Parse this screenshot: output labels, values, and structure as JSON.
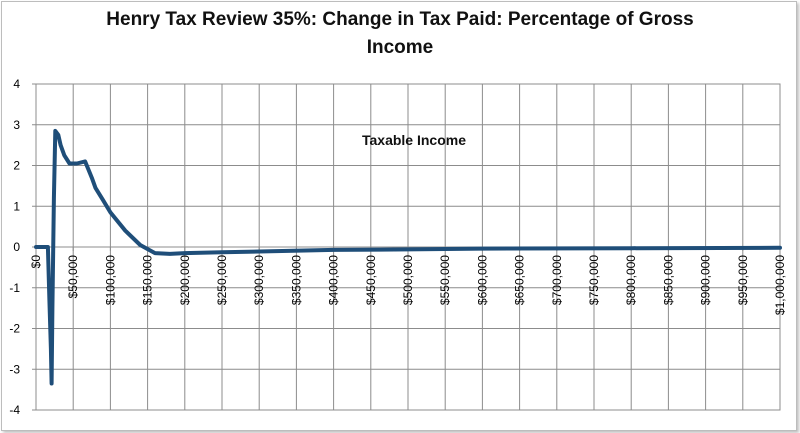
{
  "chart_data": {
    "type": "line",
    "title": "Henry Tax Review 35%: Change in Tax Paid: Percentage of Gross Income",
    "annotation": "Taxable Income",
    "xlabel": "",
    "ylabel": "",
    "xlim": [
      0,
      1000000
    ],
    "ylim": [
      -4,
      4
    ],
    "yticks": [
      -4,
      -3,
      -2,
      -1,
      0,
      1,
      2,
      3,
      4
    ],
    "xticks": [
      0,
      50000,
      100000,
      150000,
      200000,
      250000,
      300000,
      350000,
      400000,
      450000,
      500000,
      550000,
      600000,
      650000,
      700000,
      750000,
      800000,
      850000,
      900000,
      950000,
      1000000
    ],
    "xtick_labels": [
      "$0",
      "$50,000",
      "$100,000",
      "$150,000",
      "$200,000",
      "$250,000",
      "$300,000",
      "$350,000",
      "$400,000",
      "$450,000",
      "$500,000",
      "$550,000",
      "$600,000",
      "$650,000",
      "$700,000",
      "$750,000",
      "$800,000",
      "$850,000",
      "$900,000",
      "$950,000",
      "$1,000,000"
    ],
    "grid": true,
    "line_color": "#1f4e79",
    "series": [
      {
        "x": [
          0,
          6000,
          16000,
          18000,
          20000,
          21000,
          22000,
          24000,
          26000,
          30000,
          33000,
          38000,
          45000,
          55000,
          66000,
          75000,
          80000,
          90000,
          100000,
          120000,
          140000,
          160000,
          180000,
          200000,
          250000,
          300000,
          400000,
          500000,
          600000,
          800000,
          1000000
        ],
        "y": [
          0,
          0,
          0,
          -1.3,
          -2.5,
          -3.35,
          -1.5,
          1.2,
          2.85,
          2.75,
          2.5,
          2.25,
          2.05,
          2.05,
          2.1,
          1.7,
          1.45,
          1.15,
          0.85,
          0.4,
          0.05,
          -0.15,
          -0.17,
          -0.15,
          -0.13,
          -0.11,
          -0.07,
          -0.06,
          -0.04,
          -0.03,
          -0.02
        ]
      }
    ]
  }
}
